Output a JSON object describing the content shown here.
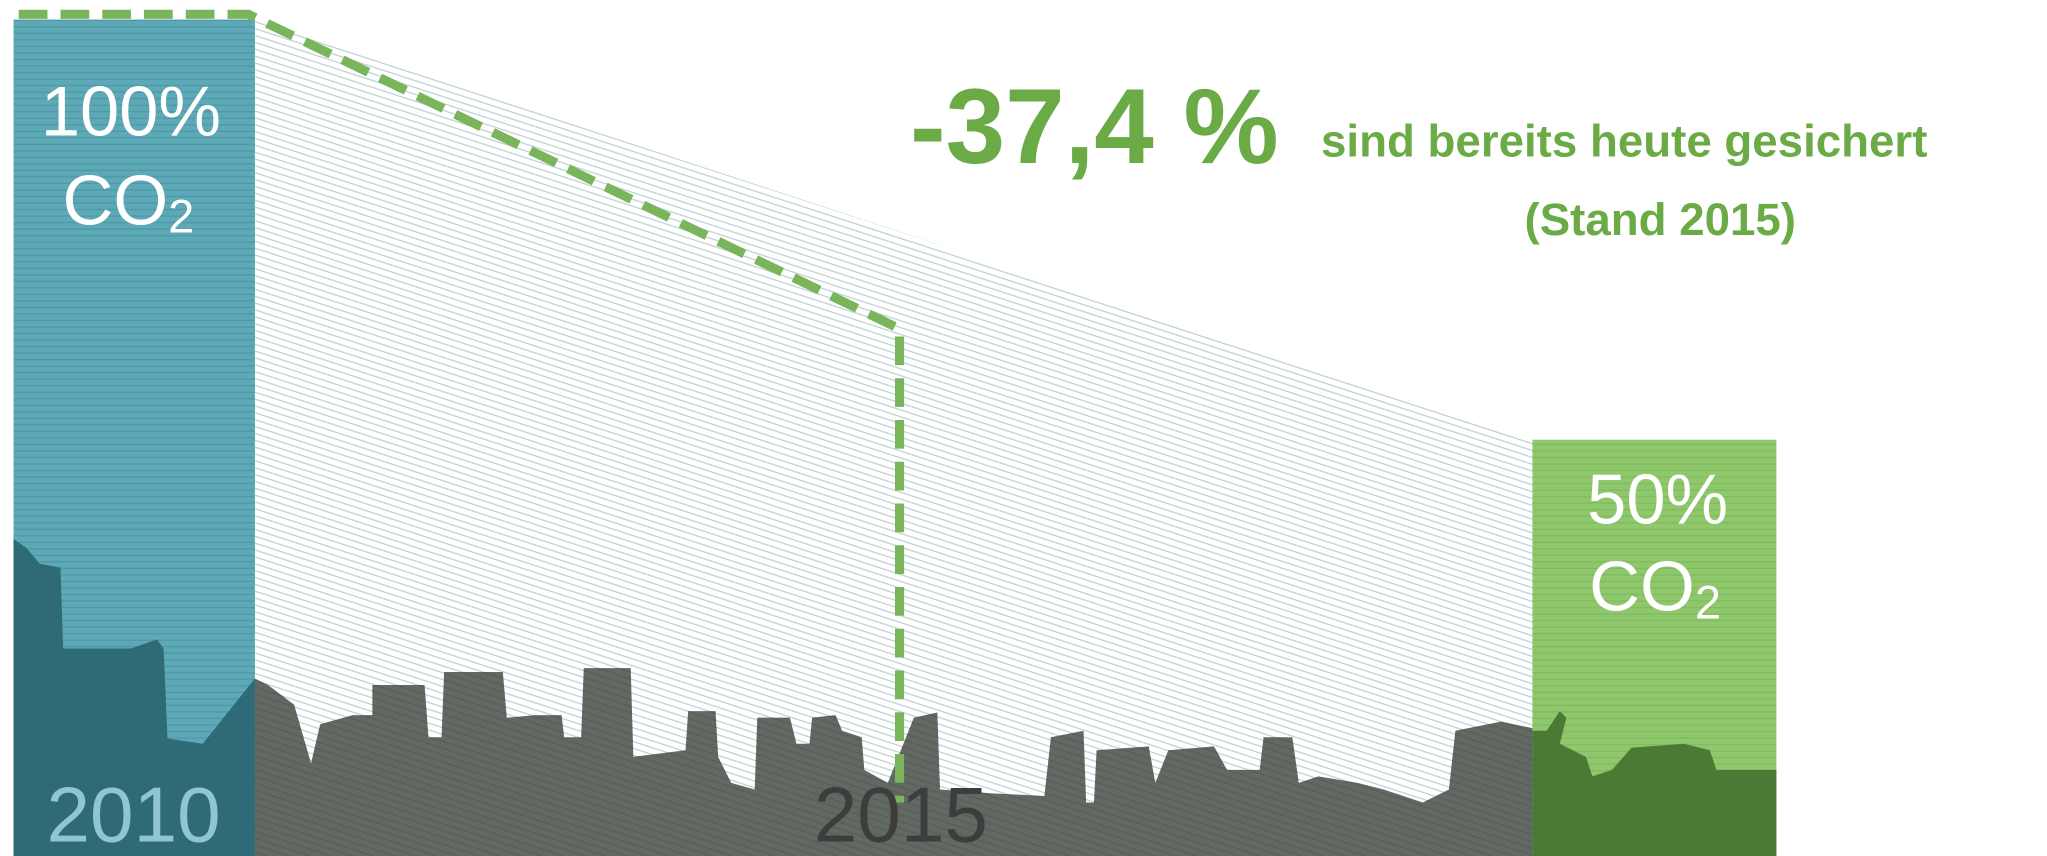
{
  "left_bar": {
    "percent": "100%",
    "label": "CO",
    "sub": "2",
    "year": "2010"
  },
  "right_bar": {
    "percent": "50%",
    "label": "CO",
    "sub": "2"
  },
  "marker": {
    "year": "2015"
  },
  "headline": {
    "value": "-37,4 %",
    "text": "sind bereits heute gesichert",
    "note": "(Stand 2015)"
  }
}
